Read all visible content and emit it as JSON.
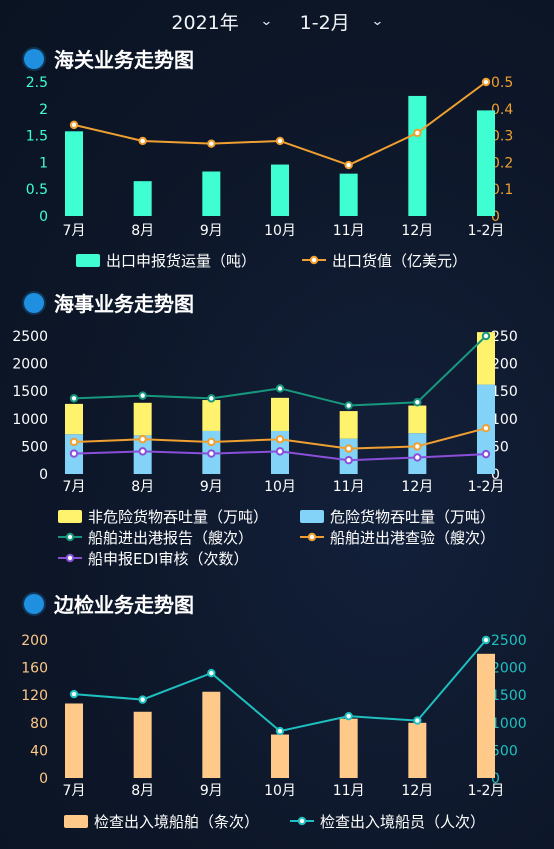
{
  "selectors": {
    "year": "2021年",
    "period": "1-2月"
  },
  "icons": {
    "dropdown": "chevron-down-icon",
    "section": "circle-dot-icon"
  },
  "sections": [
    {
      "title": "海关业务走势图"
    },
    {
      "title": "海事业务走势图"
    },
    {
      "title": "边检业务走势图"
    }
  ],
  "chart_data": [
    {
      "type": "bar",
      "categories": [
        "7月",
        "8月",
        "9月",
        "10月",
        "11月",
        "12月",
        "1-2月"
      ],
      "left_ticks": [
        "0",
        "0.5",
        "1",
        "1.5",
        "2",
        "2.5"
      ],
      "right_ticks": [
        "0",
        "0.1",
        "0.2",
        "0.3",
        "0.4",
        "0.5"
      ],
      "ylim": [
        0,
        2.5
      ],
      "y2lim": [
        0,
        0.5
      ],
      "series": [
        {
          "name": "出口申报货运量（吨）",
          "type": "bar",
          "axis": "left",
          "color": "#3fffd2",
          "values": [
            1.58,
            0.65,
            0.83,
            0.96,
            0.79,
            2.24,
            1.97
          ]
        },
        {
          "name": "出口货值（亿美元）",
          "type": "line",
          "axis": "right",
          "color": "#f0a030",
          "values": [
            0.34,
            0.28,
            0.27,
            0.28,
            0.19,
            0.31,
            0.5
          ]
        }
      ],
      "legend_position": "bottom"
    },
    {
      "type": "bar",
      "categories": [
        "7月",
        "8月",
        "9月",
        "10月",
        "11月",
        "12月",
        "1-2月"
      ],
      "left_ticks": [
        "0",
        "500",
        "1000",
        "1500",
        "2000",
        "2500"
      ],
      "right_ticks": [
        "0",
        "50",
        "100",
        "150",
        "200",
        "250"
      ],
      "ylim": [
        0,
        2500
      ],
      "y2lim": [
        0,
        250
      ],
      "stacked": true,
      "series": [
        {
          "name": "非危险货物吞吐量（万吨）",
          "type": "bar",
          "axis": "left",
          "color": "#fff36e",
          "values": [
            550,
            590,
            560,
            600,
            500,
            500,
            950
          ]
        },
        {
          "name": "危险货物吞吐量（万吨）",
          "type": "bar",
          "axis": "left",
          "color": "#83d2f7",
          "values": [
            720,
            700,
            780,
            780,
            640,
            740,
            1620
          ]
        },
        {
          "name": "船舶进出港报告（艘次）",
          "type": "line",
          "axis": "right",
          "color": "#17987e",
          "values": [
            137,
            142,
            137,
            155,
            124,
            130,
            250
          ]
        },
        {
          "name": "船舶进出港查验（艘次）",
          "type": "line",
          "axis": "right",
          "color": "#f0a030",
          "values": [
            58,
            63,
            58,
            63,
            46,
            50,
            83
          ]
        },
        {
          "name": "船申报EDI审核（次数）",
          "type": "line",
          "axis": "right",
          "color": "#8a4fd9",
          "values": [
            37,
            41,
            37,
            41,
            25,
            30,
            36
          ]
        }
      ],
      "legend_position": "bottom"
    },
    {
      "type": "bar",
      "categories": [
        "7月",
        "8月",
        "9月",
        "10月",
        "11月",
        "12月",
        "1-2月"
      ],
      "left_ticks": [
        "0",
        "40",
        "80",
        "120",
        "160",
        "200"
      ],
      "right_ticks": [
        "0",
        "500",
        "1000",
        "1500",
        "2000",
        "2500"
      ],
      "ylim": [
        0,
        200
      ],
      "y2lim": [
        0,
        2500
      ],
      "series": [
        {
          "name": "检查出入境船舶（条次）",
          "type": "bar",
          "axis": "left",
          "color": "#ffc98a",
          "values": [
            108,
            96,
            125,
            63,
            86,
            80,
            180
          ]
        },
        {
          "name": "检查出入境船员（人次）",
          "type": "line",
          "axis": "right",
          "color": "#1ec0c0",
          "values": [
            1520,
            1420,
            1900,
            850,
            1120,
            1040,
            2500
          ]
        }
      ],
      "legend_position": "bottom"
    }
  ]
}
